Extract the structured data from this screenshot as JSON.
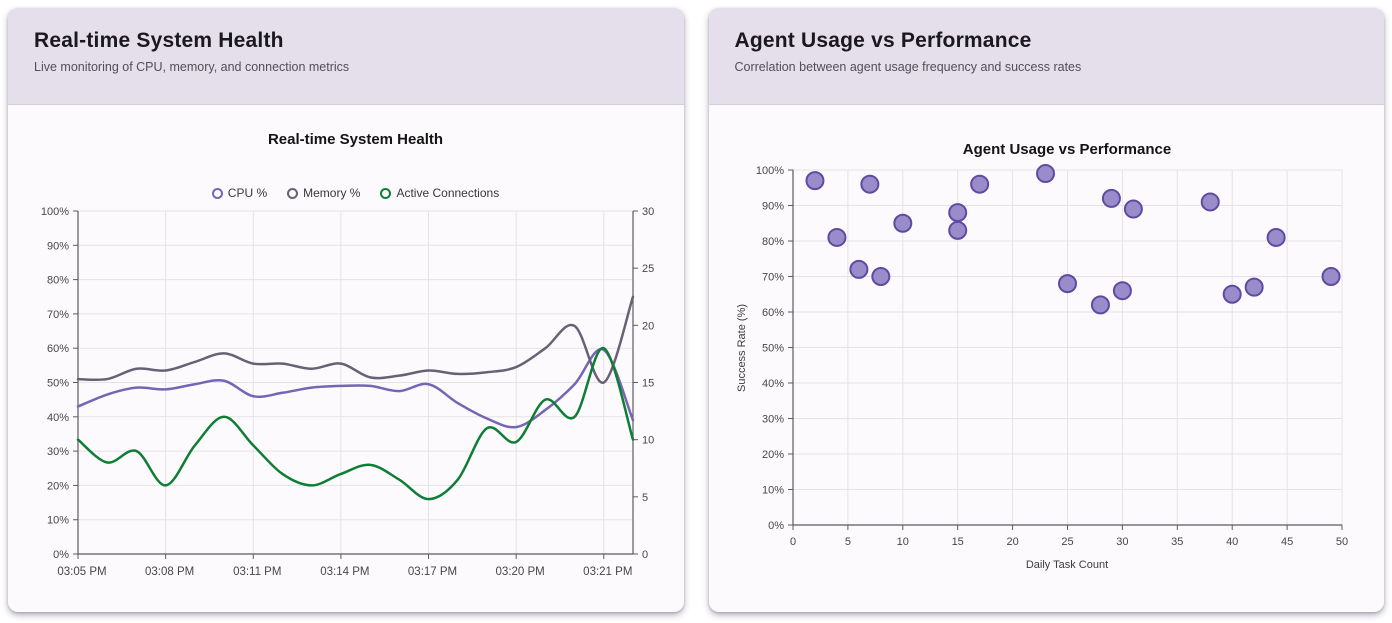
{
  "cards": [
    {
      "header": {
        "title": "Real-time System Health",
        "subtitle": "Live monitoring of CPU, memory, and connection metrics"
      }
    },
    {
      "header": {
        "title": "Agent Usage vs Performance",
        "subtitle": "Correlation between agent usage frequency and success rates"
      }
    }
  ],
  "chart_data": [
    {
      "type": "line",
      "title": "Real-time System Health",
      "legend": [
        "CPU %",
        "Memory %",
        "Active Connections"
      ],
      "x_tick_labels": [
        "03:05 PM",
        "03:08 PM",
        "03:11 PM",
        "03:14 PM",
        "03:17 PM",
        "03:20 PM",
        "03:21 PM"
      ],
      "x_tick_indices": [
        0,
        3,
        6,
        9,
        12,
        15,
        18
      ],
      "point_count": 20,
      "left_axis": {
        "min": 0,
        "max": 100,
        "tick_labels": [
          "0%",
          "10%",
          "20%",
          "30%",
          "40%",
          "50%",
          "60%",
          "70%",
          "80%",
          "90%",
          "100%"
        ]
      },
      "right_axis": {
        "min": 0,
        "max": 30,
        "tick_labels": [
          "0",
          "5",
          "10",
          "15",
          "20",
          "25",
          "30"
        ]
      },
      "series": [
        {
          "name": "CPU %",
          "axis": "left",
          "color": "#7566b4",
          "values": [
            43,
            46.5,
            48.5,
            48,
            49.5,
            50.5,
            46,
            47,
            48.5,
            49,
            49,
            47.5,
            49.5,
            44,
            39.5,
            37,
            42,
            49.5,
            59.5,
            39
          ]
        },
        {
          "name": "Memory %",
          "axis": "left",
          "color": "#686175",
          "values": [
            51,
            51,
            54,
            53.5,
            56,
            58.5,
            55.5,
            55.5,
            54,
            55.5,
            51.5,
            52,
            53.5,
            52.5,
            53,
            54.5,
            60,
            66.5,
            50,
            75
          ]
        },
        {
          "name": "Active Connections",
          "axis": "right",
          "color": "#0f7e35",
          "values": [
            10,
            8,
            9,
            6,
            9.5,
            12,
            9.5,
            7,
            6,
            7,
            7.8,
            6.5,
            4.8,
            6.5,
            11,
            9.8,
            13.5,
            12,
            18,
            10
          ]
        }
      ],
      "grid": true,
      "legend_position": "top"
    },
    {
      "type": "scatter",
      "title": "Agent Usage vs Performance",
      "xlabel": "Daily Task Count",
      "ylabel": "Success Rate (%)",
      "xlim": [
        0,
        50
      ],
      "ylim": [
        0,
        100
      ],
      "x_ticks": [
        "0",
        "5",
        "10",
        "15",
        "20",
        "25",
        "30",
        "35",
        "40",
        "45",
        "50"
      ],
      "y_ticks": [
        "0%",
        "10%",
        "20%",
        "30%",
        "40%",
        "50%",
        "60%",
        "70%",
        "80%",
        "90%",
        "100%"
      ],
      "points": [
        [
          2,
          97
        ],
        [
          4,
          81
        ],
        [
          6,
          72
        ],
        [
          7,
          96
        ],
        [
          8,
          70
        ],
        [
          10,
          85
        ],
        [
          15,
          88
        ],
        [
          15,
          83
        ],
        [
          17,
          96
        ],
        [
          23,
          99
        ],
        [
          25,
          68
        ],
        [
          28,
          62
        ],
        [
          29,
          92
        ],
        [
          30,
          66
        ],
        [
          31,
          89
        ],
        [
          38,
          91
        ],
        [
          40,
          65
        ],
        [
          42,
          67
        ],
        [
          44,
          81
        ],
        [
          49,
          70
        ]
      ],
      "point_color": "#9a8ccb",
      "point_border_color": "#5e4ba1",
      "grid": true
    }
  ],
  "colors": {
    "page_bg": "#ffffff",
    "card_bg": "#fdfafd",
    "header_bg": "#e4dfea",
    "grid_line": "#e5e1e6",
    "axis_line": "#5c5964",
    "tick_text": "#464646",
    "cpu_purple": "#7566b4",
    "memory_gray_purple": "#686175",
    "connections_green": "#0f7e35",
    "scatter_fill": "#9a8ccb",
    "scatter_stroke": "#5e4ba1"
  }
}
